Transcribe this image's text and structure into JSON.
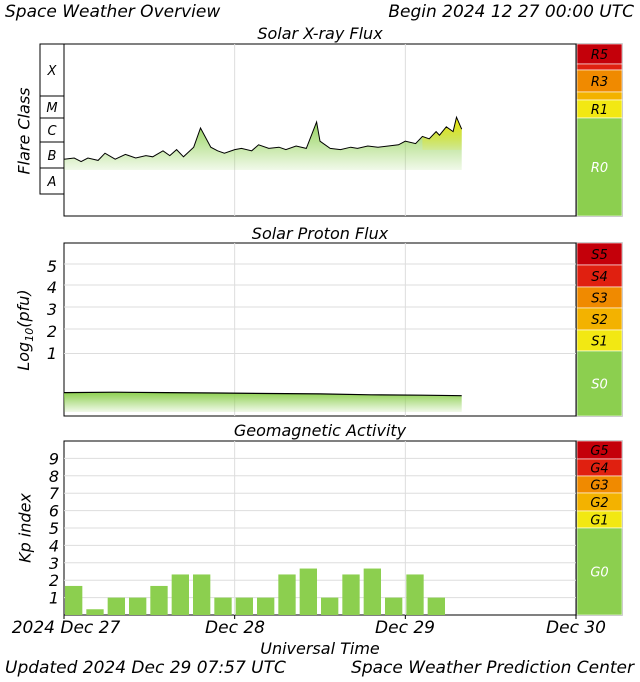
{
  "header": {
    "title": "Space Weather Overview",
    "begin": "Begin 2024 12 27 00:00 UTC"
  },
  "footer": {
    "updated": "Updated 2024 Dec 29 07:57 UTC",
    "source": "Space Weather Prediction Center"
  },
  "colors": {
    "green": "#8ccf4f",
    "yellow": "#f2e813",
    "gold": "#f3b200",
    "orange": "#f08a00",
    "red": "#e02010",
    "darkred": "#c4000a"
  },
  "chart_data": [
    {
      "type": "area",
      "title": "Solar X-ray Flux",
      "ylabel": "Flare Class",
      "ylabel_classes": [
        "X",
        "M",
        "C",
        "B",
        "A"
      ],
      "scale_labels": [
        "R5",
        "R3",
        "R1",
        "R0"
      ],
      "x_days": [
        0,
        0.06,
        0.1,
        0.14,
        0.2,
        0.24,
        0.3,
        0.36,
        0.42,
        0.48,
        0.52,
        0.58,
        0.62,
        0.66,
        0.7,
        0.76,
        0.8,
        0.86,
        0.9,
        0.94,
        1.0,
        1.04,
        1.1,
        1.14,
        1.2,
        1.26,
        1.3,
        1.36,
        1.42,
        1.48,
        1.5,
        1.56,
        1.62,
        1.68,
        1.72,
        1.78,
        1.84,
        1.9,
        1.96,
        2.0,
        2.06,
        2.1,
        2.14,
        2.18,
        2.2,
        2.24,
        2.28,
        2.3,
        2.33
      ],
      "class_level": [
        1.45,
        1.5,
        1.35,
        1.5,
        1.4,
        1.7,
        1.45,
        1.65,
        1.5,
        1.6,
        1.55,
        1.8,
        1.6,
        1.85,
        1.55,
        1.95,
        2.75,
        1.95,
        1.8,
        1.7,
        1.85,
        1.9,
        1.8,
        2.05,
        1.9,
        1.95,
        1.85,
        2.0,
        1.9,
        3.0,
        2.2,
        1.9,
        1.85,
        1.95,
        1.9,
        2.0,
        1.95,
        2.0,
        2.05,
        2.2,
        2.1,
        2.4,
        2.3,
        2.6,
        2.45,
        2.8,
        2.6,
        3.2,
        2.7
      ],
      "ylim_class": [
        0,
        7.2
      ]
    },
    {
      "type": "area",
      "title": "Solar Proton Flux",
      "ylabel": "Log10(pfu)",
      "yticks": [
        "5",
        "4",
        "3",
        "2",
        "1"
      ],
      "scale_labels": [
        "S5",
        "S4",
        "S3",
        "S2",
        "S1",
        "S0"
      ],
      "x_days": [
        0,
        0.3,
        0.6,
        0.9,
        1.2,
        1.5,
        1.8,
        2.1,
        2.33
      ],
      "log10_pfu": [
        -0.8,
        -0.78,
        -0.8,
        -0.82,
        -0.84,
        -0.86,
        -0.9,
        -0.92,
        -0.94
      ],
      "ylim": [
        -2,
        6
      ]
    },
    {
      "type": "bar",
      "title": "Geomagnetic Activity",
      "ylabel": "Kp index",
      "yticks": [
        "9",
        "8",
        "7",
        "6",
        "5",
        "4",
        "3",
        "2",
        "1"
      ],
      "scale_labels": [
        "G5",
        "G4",
        "G3",
        "G2",
        "G1",
        "G0"
      ],
      "xlabel": "Universal Time",
      "xticks": [
        "2024 Dec 27",
        "Dec 28",
        "Dec 29",
        "Dec 30"
      ],
      "kp": [
        1.67,
        0.33,
        1.0,
        1.0,
        1.67,
        2.33,
        2.33,
        1.0,
        1.0,
        1.0,
        2.33,
        2.67,
        1.0,
        2.33,
        2.67,
        1.0,
        2.33,
        1.0
      ],
      "ylim": [
        0,
        10
      ]
    }
  ]
}
